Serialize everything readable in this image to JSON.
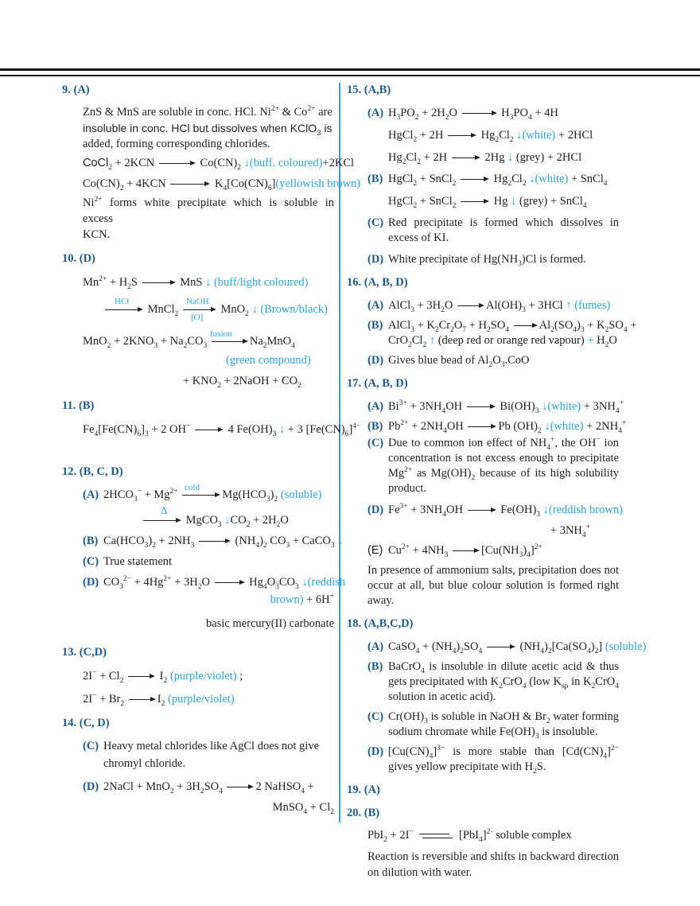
{
  "q9": {
    "head": "9. (A)",
    "l1": "ZnS & MnS are soluble in conc. HCl. Ni²⁺ & Co²⁺ are",
    "l2": "insoluble in conc. HCl but dissolves when KClO₃ is",
    "l3": "added, forming corresponding chlorides.",
    "l4": "CoCl₂ + 2KCN ⟶ Co(CN)₂ ↓(buff. coloured)+2KCl",
    "l5": "Co(CN)₂ + 4KCN ⟶ K₄[Co(CN)₆](yellowish brown)",
    "l6": "Ni²⁺ forms white precipitate which is soluble in excess",
    "l7": "KCN."
  },
  "q10": {
    "head": "10. (D)",
    "l1": "Mn²⁺ + H₂S ⟶ MnS ↓ (buff/light coloured)",
    "hcl": "HCl",
    "naoh": "NaOH",
    "o": "[O]",
    "fusion": "fusion",
    "l3": "MnO₂ + 2KNO₃ + Na₂CO₃ ⟶ Na₂MnO₄",
    "l4": "(green compound)",
    "l5": "+ KNO₂ + 2NaOH + CO₂"
  },
  "q11": {
    "head": "11.  (B)",
    "l1": "Fe₄[Fe(CN)₆]₃ + 2 OH⁻ ⟶ 4 Fe(OH)₃ ↓ + 3 [Fe(CN)₆]⁴⁻"
  },
  "q12": {
    "head": "12. (B, C, D)",
    "A": "(A)",
    "B": "(B)",
    "C": "(C)",
    "D": "(D)",
    "cold": "cold",
    "delta": "Δ",
    "c": "True statement",
    "dnote": "basic mercury(II) carbonate"
  },
  "q13": {
    "head": "13.  (C,D)"
  },
  "q14": {
    "head": "14.  (C, D)",
    "C": "(C)",
    "D": "(D)",
    "c1": "Heavy metal chlorides like AgCl does not give",
    "c2": "chromyl chloride."
  },
  "q15": {
    "head": "15. (A,B)",
    "A": "(A)",
    "B": "(B)",
    "C": "(C)",
    "D": "(D)",
    "c": "Red precipitate is formed which dissolves in excess of KI."
  },
  "q16": {
    "head": "16.  (A, B, D)",
    "A": "(A)",
    "B": "(B)",
    "D": "(D)"
  },
  "q17": {
    "head": "17.  (A, B, D)",
    "A": "(A)",
    "B": "(B)",
    "C": "(C)",
    "D": "(D)",
    "E": "(E)",
    "note": "In presence of ammonium salts, precipitation does not occur at all, but blue colour solution is formed right away."
  },
  "q18": {
    "head": "18. (A,B,C,D)",
    "A": "(A)",
    "B": "(B)",
    "C": "(C)",
    "D": "(D)",
    "c": "sodium chromate while Fe(OH)₃ is insoluble."
  },
  "q19": {
    "head": "19. (A)"
  },
  "q20": {
    "head": "20. (B)",
    "note": "Reaction is reversible and shifts in backward direction on dilution with water."
  }
}
